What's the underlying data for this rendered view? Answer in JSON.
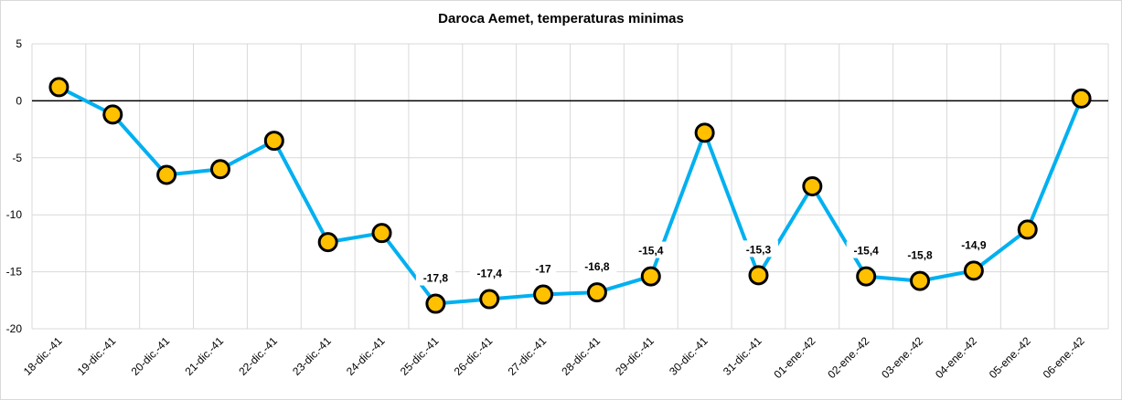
{
  "chart_data": {
    "type": "line",
    "title": "Daroca Aemet, temperaturas minimas",
    "xlabel": "",
    "ylabel": "",
    "ylim": [
      -20,
      5
    ],
    "yticks": [
      5,
      0,
      -5,
      -10,
      -15,
      -20
    ],
    "grid": true,
    "legend": "none",
    "categories": [
      "18-dic.-41",
      "19-dic.-41",
      "20-dic.-41",
      "21-dic.-41",
      "22-dic.-41",
      "23-dic.-41",
      "24-dic.-41",
      "25-dic.-41",
      "26-dic.-41",
      "27-dic.-41",
      "28-dic.-41",
      "29-dic.-41",
      "30-dic.-41",
      "31-dic.-41",
      "01-ene.-42",
      "02-ene.-42",
      "03-ene.-42",
      "04-ene.-42",
      "05-ene.-42",
      "06-ene.-42"
    ],
    "series": [
      {
        "values": [
          1.2,
          -1.2,
          -6.5,
          -6.0,
          -3.5,
          -12.4,
          -11.6,
          -17.8,
          -17.4,
          -17.0,
          -16.8,
          -15.4,
          -2.8,
          -15.3,
          -7.5,
          -15.4,
          -15.8,
          -14.9,
          -11.3,
          0.2
        ],
        "data_labels": [
          "",
          "",
          "",
          "",
          "",
          "",
          "",
          "-17,8",
          "-17,4",
          "-17",
          "-16,8",
          "-15,4",
          "",
          "-15,3",
          "",
          "-15,4",
          "-15,8",
          "-14,9",
          "",
          ""
        ]
      }
    ],
    "colors": {
      "line": "#00b0f0",
      "marker_fill": "#ffc000",
      "marker_stroke": "#000000",
      "zero_line": "#000000",
      "grid": "#d9d9d9"
    }
  }
}
